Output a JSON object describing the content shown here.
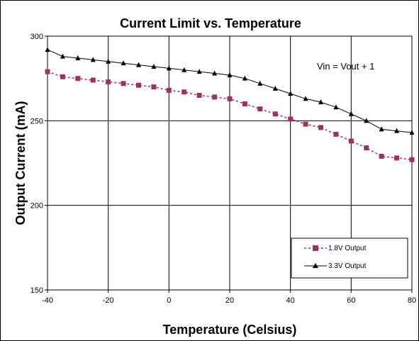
{
  "chart_data": {
    "type": "line",
    "title": "Current Limit vs. Temperature",
    "xlabel": "Temperature (Celsius)",
    "ylabel": "Output Current (mA)",
    "xlim": [
      -40,
      80
    ],
    "ylim": [
      150,
      300
    ],
    "xticks": [
      -40,
      -20,
      0,
      20,
      40,
      60,
      80
    ],
    "yticks": [
      150,
      200,
      250,
      300
    ],
    "grid": true,
    "legend_position": "bottom-right",
    "annotation": "Vin = Vout + 1",
    "series": [
      {
        "name": "1.8V Output",
        "color": "#993366",
        "line_style": "dashed",
        "marker": "square",
        "x": [
          -40,
          -35,
          -30,
          -25,
          -20,
          -15,
          -10,
          -5,
          0,
          5,
          10,
          15,
          20,
          25,
          30,
          35,
          40,
          45,
          50,
          55,
          60,
          65,
          70,
          75,
          80
        ],
        "y": [
          279,
          276,
          275,
          274,
          273,
          272,
          271,
          270,
          268,
          267,
          265,
          264,
          263,
          260,
          257,
          254,
          251,
          248,
          246,
          242,
          238,
          234,
          229,
          228,
          227
        ]
      },
      {
        "name": "3.3V Output",
        "color": "#000000",
        "line_style": "solid",
        "marker": "triangle",
        "x": [
          -40,
          -35,
          -30,
          -25,
          -20,
          -15,
          -10,
          -5,
          0,
          5,
          10,
          15,
          20,
          25,
          30,
          35,
          40,
          45,
          50,
          55,
          60,
          65,
          70,
          75,
          80
        ],
        "y": [
          292,
          288,
          287,
          286,
          285,
          284,
          283,
          282,
          281,
          280,
          279,
          278,
          277,
          275,
          272,
          269,
          266,
          263,
          261,
          258,
          254,
          250,
          245,
          244,
          243
        ]
      }
    ]
  }
}
